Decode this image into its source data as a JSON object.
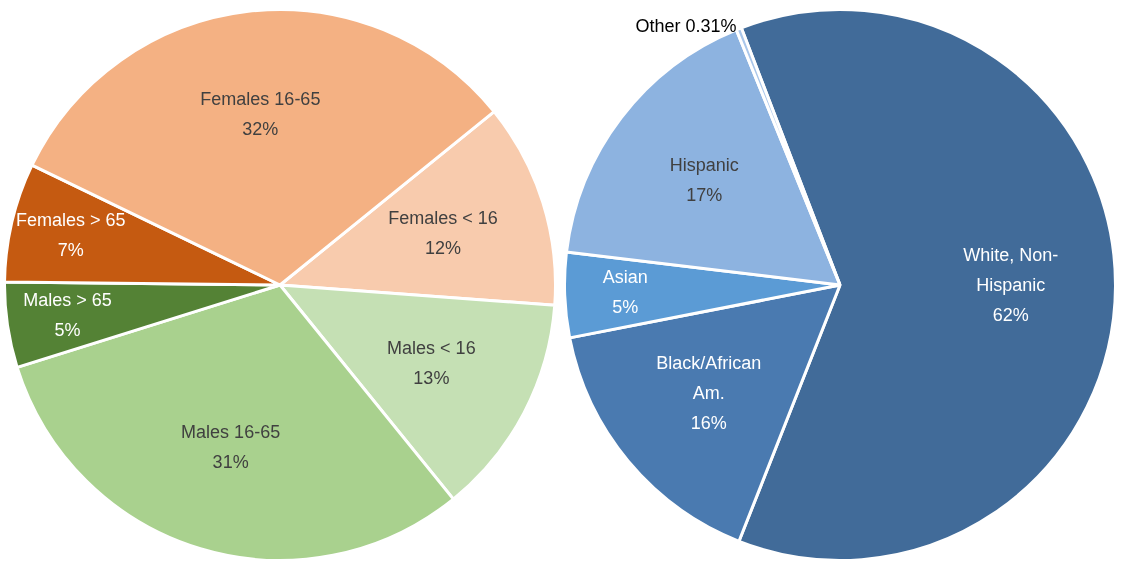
{
  "chart_data": [
    {
      "type": "pie",
      "categories": [
        "Females < 16",
        "Males < 16",
        "Males 16-65",
        "Males > 65",
        "Females > 65",
        "Females 16-65"
      ],
      "values": [
        12,
        13,
        31,
        5,
        7,
        32
      ],
      "value_labels": [
        "12%",
        "13%",
        "31%",
        "5%",
        "7%",
        "32%"
      ],
      "colors": [
        "#f8cbad",
        "#c5e0b4",
        "#a9d18e",
        "#548235",
        "#c55a11",
        "#f4b183"
      ]
    },
    {
      "type": "pie",
      "categories": [
        "White, Non-Hispanic",
        "Black/African Am.",
        "Asian",
        "Hispanic",
        "Other"
      ],
      "values": [
        62,
        16,
        5,
        17,
        0.31
      ],
      "value_labels": [
        "62%",
        "16%",
        "5%",
        "17%",
        "0.31%"
      ],
      "colors": [
        "#416b99",
        "#4a7ab0",
        "#5b9bd5",
        "#8db3e0",
        "#a9c6ea"
      ]
    }
  ]
}
